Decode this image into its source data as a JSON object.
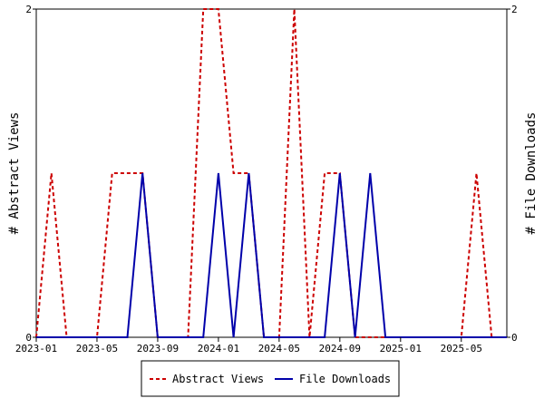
{
  "chart_data": {
    "type": "line",
    "title": "",
    "x_tick_labels": [
      "2023-01",
      "2023-05",
      "2023-09",
      "2024-01",
      "2024-05",
      "2024-09",
      "2025-01",
      "2025-05"
    ],
    "x_ticks": [
      "2023-01",
      "2023-05",
      "2023-09",
      "2024-01",
      "2024-05",
      "2024-09",
      "2025-01",
      "2025-05"
    ],
    "xlim": [
      "2023-01",
      "2025-08"
    ],
    "ylabel_left": "# Abstract Views",
    "ylabel_right": "# File Downloads",
    "ylim_left": [
      0,
      2
    ],
    "ylim_right": [
      0,
      2
    ],
    "y_tick_labels_left": [
      "0",
      "2"
    ],
    "y_tick_labels_right": [
      "0",
      "2"
    ],
    "grid": false,
    "legend_position": "bottom",
    "months": [
      "2023-01",
      "2023-02",
      "2023-03",
      "2023-04",
      "2023-05",
      "2023-06",
      "2023-07",
      "2023-08",
      "2023-09",
      "2023-10",
      "2023-11",
      "2023-12",
      "2024-01",
      "2024-02",
      "2024-03",
      "2024-04",
      "2024-05",
      "2024-06",
      "2024-07",
      "2024-08",
      "2024-09",
      "2024-10",
      "2024-11",
      "2024-12",
      "2025-01",
      "2025-02",
      "2025-03",
      "2025-04",
      "2025-05",
      "2025-06",
      "2025-07",
      "2025-08"
    ],
    "series": [
      {
        "name": "Abstract Views",
        "axis": "left",
        "color": "#cc0000",
        "style": "dashed",
        "values": [
          0,
          1,
          0,
          0,
          0,
          1,
          1,
          1,
          0,
          0,
          0,
          2,
          2,
          1,
          1,
          0,
          0,
          2,
          0,
          1,
          1,
          0,
          0,
          0,
          0,
          0,
          0,
          0,
          0,
          1,
          0,
          0
        ]
      },
      {
        "name": "File Downloads",
        "axis": "right",
        "color": "#0000aa",
        "style": "solid",
        "values": [
          0,
          0,
          0,
          0,
          0,
          0,
          0,
          1,
          0,
          0,
          0,
          0,
          1,
          0,
          1,
          0,
          0,
          0,
          0,
          0,
          1,
          0,
          1,
          0,
          0,
          0,
          0,
          0,
          0,
          0,
          0,
          0
        ]
      }
    ]
  }
}
